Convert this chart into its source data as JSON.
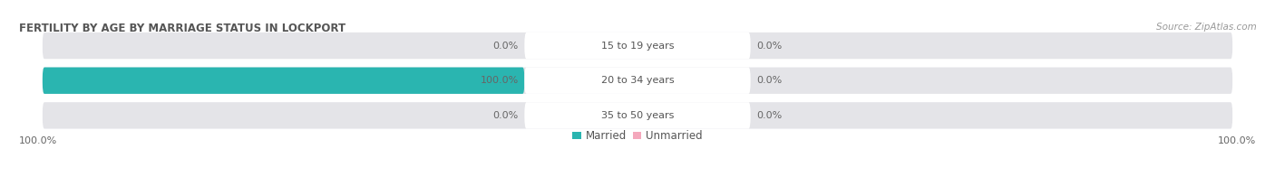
{
  "title": "FERTILITY BY AGE BY MARRIAGE STATUS IN LOCKPORT",
  "source": "Source: ZipAtlas.com",
  "rows": [
    {
      "label": "15 to 19 years",
      "married": 0.0,
      "unmarried": 0.0
    },
    {
      "label": "20 to 34 years",
      "married": 100.0,
      "unmarried": 0.0
    },
    {
      "label": "35 to 50 years",
      "married": 0.0,
      "unmarried": 0.0
    }
  ],
  "married_color": "#2ab5b0",
  "unmarried_color": "#f4a8bc",
  "bar_bg_color": "#e4e4e8",
  "center_label_bg": "#ffffff",
  "title_color": "#555555",
  "source_color": "#999999",
  "pct_color": "#666666",
  "label_color": "#555555",
  "title_fontsize": 8.5,
  "source_fontsize": 7.5,
  "bar_label_fontsize": 8.0,
  "pct_fontsize": 8.0,
  "legend_fontsize": 8.5,
  "legend_married": "Married",
  "legend_unmarried": "Unmarried",
  "left_bottom_label": "100.0%",
  "right_bottom_label": "100.0%"
}
